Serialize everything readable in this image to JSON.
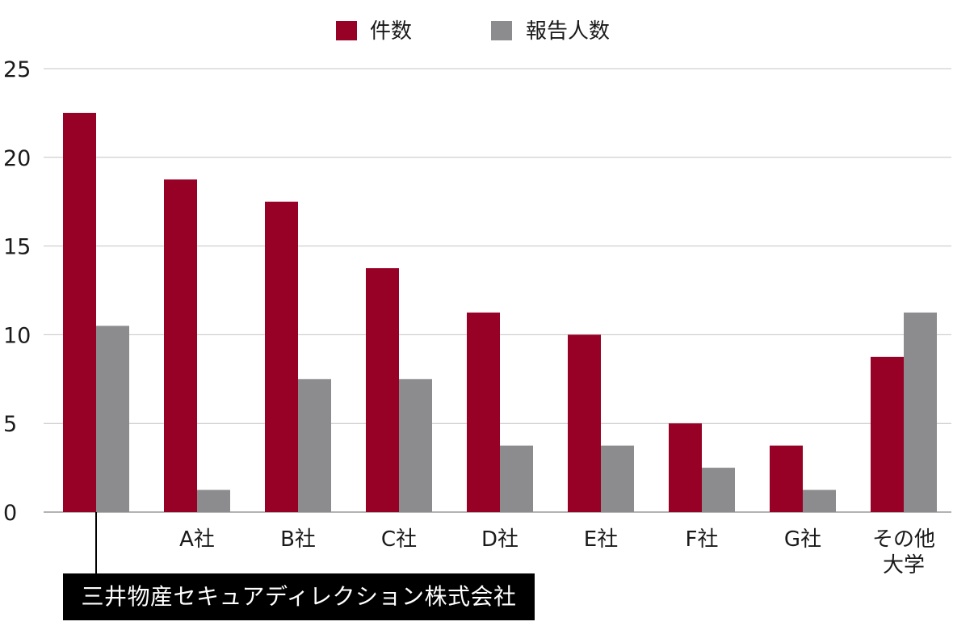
{
  "chart_data": {
    "type": "bar",
    "categories": [
      "",
      "A社",
      "B社",
      "C社",
      "D社",
      "E社",
      "F社",
      "G社",
      "その他大学"
    ],
    "category_lines": [
      [
        ""
      ],
      [
        "A社"
      ],
      [
        "B社"
      ],
      [
        "C社"
      ],
      [
        "D社"
      ],
      [
        "E社"
      ],
      [
        "F社"
      ],
      [
        "G社"
      ],
      [
        "その他",
        "大学"
      ]
    ],
    "series": [
      {
        "name": "件数",
        "color": "#970125",
        "values": [
          22.5,
          18.75,
          17.5,
          13.75,
          11.25,
          10,
          5,
          3.75,
          8.75
        ]
      },
      {
        "name": "報告人数",
        "color": "#8c8c8e",
        "values": [
          10.5,
          1.25,
          7.5,
          7.5,
          3.75,
          3.75,
          2.5,
          1.25,
          11.25
        ]
      }
    ],
    "ylim": [
      0,
      25
    ],
    "yticks": [
      0,
      5,
      10,
      15,
      20,
      25
    ],
    "grid": true,
    "legend": "top-center",
    "title": "",
    "xlabel": "",
    "ylabel": ""
  },
  "callout": {
    "label": "三井物産セキュアディレクション株式会社",
    "category_index": 0
  }
}
